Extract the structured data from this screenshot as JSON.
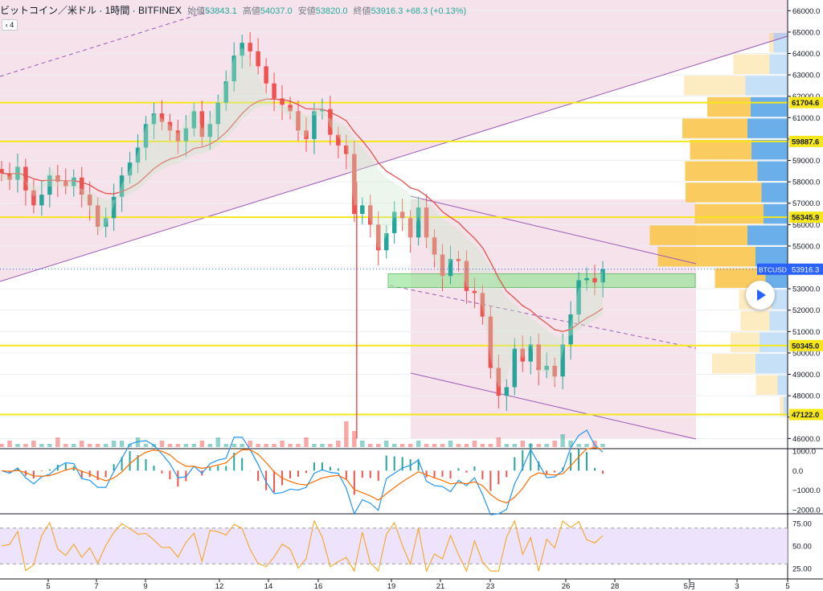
{
  "header": {
    "symbol": "ビットコイン／米ドル · 1時間 · BITFINEX",
    "open_label": "始値",
    "open": "53843.1",
    "high_label": "高値",
    "high": "54037.0",
    "low_label": "安値",
    "low": "53820.0",
    "close_label": "終値",
    "close": "53916.3",
    "change": "+68.3 (+0.13%)",
    "collapse_glyph": "‹",
    "indicator_count": "4"
  },
  "colors": {
    "up": "#26a69a",
    "down": "#ef5350",
    "hline": "#f5e71b",
    "ma": "#e0534f",
    "channel": "#9b59b6",
    "vol_up": "#f9c74f",
    "vol_down": "#5aa6e8"
  },
  "chart_data": {
    "type": "candlestick",
    "symbol": "BTCUSD",
    "price_axis": {
      "min": 45600,
      "max": 66500,
      "ticks": [
        46000,
        47000,
        48000,
        49000,
        50000,
        51000,
        52000,
        53000,
        54000,
        55000,
        56000,
        57000,
        58000,
        59000,
        60000,
        61000,
        62000,
        63000,
        64000,
        65000,
        66000
      ],
      "tick_labels": [
        "46000.0",
        "47000.0",
        "48000.0",
        "49000.0",
        "50000.0",
        "51000.0",
        "52000.0",
        "53000.0",
        "54000.0",
        "55000.0",
        "56000.0",
        "57000.0",
        "58000.0",
        "59000.0",
        "60000.0",
        "61000.0",
        "62000.0",
        "63000.0",
        "64000.0",
        "65000.0",
        "66000.0"
      ]
    },
    "x_axis_labels": [
      "5",
      "7",
      "9",
      "12",
      "14",
      "16",
      "19",
      "21",
      "23",
      "26",
      "28",
      "5月",
      "3",
      "5"
    ],
    "horizontal_levels": [
      {
        "label": "61704.6",
        "value": 61704.6
      },
      {
        "label": "59887.6",
        "value": 59887.6
      },
      {
        "label": "56345.9",
        "value": 56345.9
      },
      {
        "label": "50345.0",
        "value": 50345.0
      },
      {
        "label": "47122.0",
        "value": 47122.0
      }
    ],
    "last_price": {
      "label": "BTCUSD",
      "value": 53916.3,
      "value_label": "53916.3"
    },
    "support_zone": [
      53060,
      53700
    ],
    "price_path": [
      58400,
      58100,
      58700,
      57600,
      56900,
      57400,
      58300,
      58000,
      57800,
      58200,
      57400,
      56900,
      55900,
      56300,
      57300,
      58300,
      58900,
      59600,
      60700,
      61200,
      60800,
      60400,
      59900,
      60500,
      61300,
      60100,
      60700,
      61700,
      62700,
      63900,
      64500,
      64100,
      63400,
      62600,
      61900,
      61600,
      61300,
      60400,
      60000,
      61300,
      61400,
      60200,
      59700,
      59300,
      56500,
      56900,
      56000,
      54800,
      55600,
      56600,
      56300,
      55400,
      56800,
      55400,
      54600,
      53600,
      54400,
      54300,
      52900,
      52800,
      51700,
      49300,
      48000,
      48400,
      50200,
      49600,
      50400,
      49200,
      49400,
      48900,
      50400,
      51800,
      53400,
      53500,
      53300,
      53916.3
    ],
    "volume_scale": [
      1,
      2,
      1,
      1,
      2,
      1,
      1,
      3,
      1,
      1,
      2,
      1,
      1,
      1,
      2,
      2,
      1,
      3,
      1,
      1,
      2,
      1,
      1,
      1,
      1,
      2,
      1,
      3,
      1,
      1,
      1,
      2,
      1,
      1,
      1,
      2,
      1,
      1,
      3,
      1,
      1,
      1,
      2,
      8,
      5,
      2,
      1,
      1,
      2,
      1,
      1,
      1,
      2,
      1,
      1,
      1,
      2,
      1,
      1,
      2,
      1,
      1,
      3,
      1,
      1,
      2,
      1,
      1,
      1,
      2,
      4,
      2,
      1,
      1,
      2,
      1
    ],
    "volume_profile": [
      {
        "price": 64500,
        "up": 6,
        "down": 35
      },
      {
        "price": 63500,
        "up": 50,
        "down": 45
      },
      {
        "price": 62500,
        "up": 85,
        "down": 105
      },
      {
        "price": 61500,
        "up": 60,
        "down": 92
      },
      {
        "price": 60500,
        "up": 90,
        "down": 100
      },
      {
        "price": 59500,
        "up": 85,
        "down": 90
      },
      {
        "price": 58500,
        "up": 100,
        "down": 75
      },
      {
        "price": 57500,
        "up": 105,
        "down": 65
      },
      {
        "price": 56500,
        "up": 95,
        "down": 60
      },
      {
        "price": 55500,
        "up": 135,
        "down": 100
      },
      {
        "price": 54500,
        "up": 135,
        "down": 80
      },
      {
        "price": 53500,
        "up": 70,
        "down": 55
      },
      {
        "price": 52500,
        "up": 45,
        "down": 40
      },
      {
        "price": 51500,
        "up": 40,
        "down": 45
      },
      {
        "price": 50500,
        "up": 40,
        "down": 70
      },
      {
        "price": 49500,
        "up": 60,
        "down": 80
      },
      {
        "price": 48500,
        "up": 30,
        "down": 25
      },
      {
        "price": 47500,
        "up": 5,
        "down": 10
      }
    ],
    "macd": {
      "axis_ticks": [
        "1000.0",
        "0.0",
        "−1000.0",
        "−2000.0"
      ],
      "tick_values": [
        1000,
        0,
        -1000,
        -2000
      ],
      "min": -2000,
      "max": 1000
    },
    "rsi": {
      "axis_ticks": [
        "75.00",
        "50.00",
        "25.00"
      ],
      "tick_values": [
        75,
        50,
        25
      ],
      "min": 15,
      "max": 85,
      "band": [
        30,
        70
      ]
    }
  }
}
